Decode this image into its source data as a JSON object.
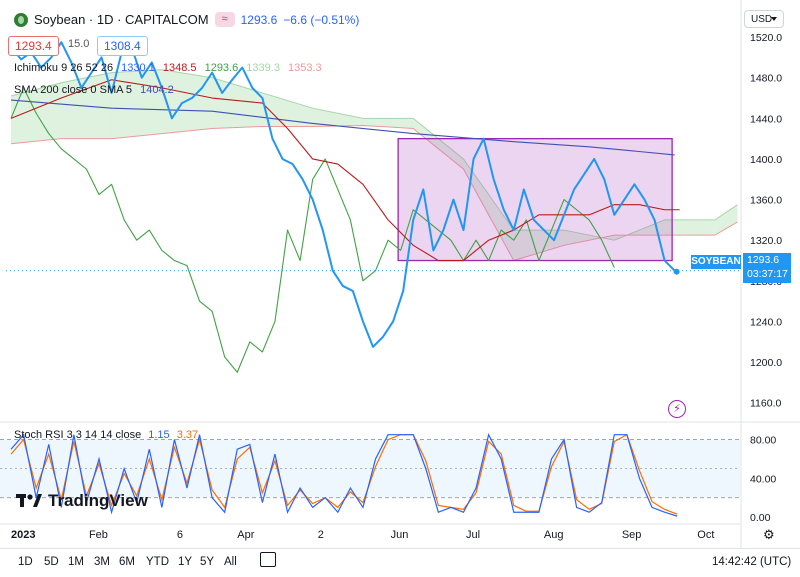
{
  "header": {
    "symbol_title": "Soybean · 1D · CAPITALCOM",
    "alert_icon": "wave-icon",
    "last_price": "1293.6",
    "change": "−6.6 (−0.51%)",
    "sell_price": "1293.4",
    "spread": "15.0",
    "buy_price": "1308.4"
  },
  "currency": "USD",
  "legends": {
    "ichimoku_name": "Ichimoku 9 26 52 26",
    "ichimoku_values": [
      "1330.1",
      "1348.5",
      "1293.6",
      "1339.3",
      "1353.3"
    ],
    "ichimoku_colors": [
      "#2962ff",
      "#b71c1c",
      "#43a047",
      "#a5d6a7",
      "#ef9a9a"
    ],
    "sma_name": "SMA 200 close 0 SMA 5",
    "sma_value": "1404.2",
    "stoch_name": "Stoch RSI 3 3 14 14 close",
    "stoch_k": "1.15",
    "stoch_d": "3.37"
  },
  "tags": {
    "symbol": "SOYBEAN",
    "price": "1293.6",
    "countdown": "03:37:17"
  },
  "watermark": "TradingView",
  "timeframes": [
    "1D",
    "5D",
    "1M",
    "3M",
    "6M",
    "YTD",
    "1Y",
    "5Y",
    "All"
  ],
  "clock": "14:42:42 (UTC)",
  "colors": {
    "price_line": "#2196f3",
    "kijun": "#b71c1c",
    "chikou": "#43a047",
    "tenkan": "#2962ff",
    "sma": "#3f51b5",
    "rect_fill": "#e1bee7",
    "rect_border": "#9c27b0",
    "stoch_k": "#2962ff",
    "stoch_d": "#ff6d00"
  },
  "chart_data": [
    {
      "type": "line",
      "title": "Soybean · 1D · CAPITALCOM",
      "y_ticks": [
        1520,
        1480,
        1440,
        1400,
        1360,
        1320,
        1280,
        1240,
        1200,
        1160
      ],
      "ylim": [
        1143,
        1525
      ],
      "x_ticks": [
        {
          "label": "2023",
          "day": 0
        },
        {
          "label": "Feb",
          "day": 31
        },
        {
          "label": "6",
          "day": 66
        },
        {
          "label": "Apr",
          "day": 90
        },
        {
          "label": "2",
          "day": 122
        },
        {
          "label": "Jun",
          "day": 151
        },
        {
          "label": "Jul",
          "day": 181
        },
        {
          "label": "Aug",
          "day": 212
        },
        {
          "label": "Sep",
          "day": 243
        },
        {
          "label": "Oct",
          "day": 273
        }
      ],
      "xlim": [
        -2,
        290
      ],
      "series": [
        {
          "name": "price",
          "color": "#2196f3",
          "x": [
            0,
            4,
            8,
            12,
            16,
            20,
            24,
            28,
            32,
            36,
            40,
            44,
            48,
            52,
            56,
            60,
            64,
            68,
            72,
            76,
            80,
            84,
            88,
            92,
            96,
            100,
            104,
            108,
            112,
            116,
            120,
            124,
            128,
            132,
            136,
            140,
            144,
            148,
            152,
            156,
            160,
            164,
            168,
            172,
            176,
            180,
            184,
            188,
            192,
            196,
            200,
            204,
            208,
            212,
            216,
            220,
            224,
            228,
            232,
            236,
            240,
            244,
            248,
            252,
            256,
            260,
            264
          ],
          "y": [
            1510,
            1498,
            1505,
            1490,
            1500,
            1515,
            1495,
            1470,
            1485,
            1500,
            1465,
            1505,
            1510,
            1480,
            1495,
            1470,
            1440,
            1455,
            1460,
            1470,
            1485,
            1465,
            1478,
            1490,
            1470,
            1460,
            1420,
            1400,
            1395,
            1380,
            1360,
            1330,
            1290,
            1275,
            1270,
            1240,
            1215,
            1225,
            1240,
            1270,
            1340,
            1370,
            1310,
            1330,
            1360,
            1330,
            1400,
            1420,
            1380,
            1350,
            1330,
            1370,
            1340,
            1330,
            1320,
            1345,
            1370,
            1385,
            1400,
            1380,
            1345,
            1360,
            1375,
            1360,
            1340,
            1300,
            1290
          ]
        },
        {
          "name": "Ichimoku Kijun",
          "color": "#b71c1c",
          "x": [
            0,
            20,
            40,
            60,
            80,
            100,
            110,
            120,
            130,
            140,
            150,
            160,
            170,
            180,
            190,
            200,
            210,
            220,
            230,
            240,
            250,
            260,
            266
          ],
          "y": [
            1440,
            1460,
            1478,
            1470,
            1460,
            1455,
            1430,
            1400,
            1395,
            1375,
            1340,
            1315,
            1300,
            1300,
            1320,
            1330,
            1345,
            1345,
            1345,
            1355,
            1355,
            1350,
            1350
          ]
        },
        {
          "name": "SMA",
          "color": "#3f51b5",
          "x": [
            0,
            40,
            80,
            120,
            160,
            200,
            230,
            264
          ],
          "y": [
            1458,
            1450,
            1447,
            1435,
            1425,
            1417,
            1412,
            1404
          ]
        },
        {
          "name": "Ichimoku Chikou",
          "color": "#43a047",
          "x": [
            0,
            5,
            10,
            15,
            20,
            25,
            30,
            35,
            40,
            45,
            50,
            55,
            60,
            65,
            70,
            75,
            80,
            85,
            90,
            95,
            100,
            105,
            110,
            115,
            120,
            125,
            130,
            135,
            140,
            145,
            150,
            155,
            160,
            165,
            170,
            175,
            180,
            185,
            190,
            195,
            200,
            205,
            210,
            215,
            220,
            225,
            230,
            235,
            240
          ],
          "y": [
            1440,
            1470,
            1445,
            1425,
            1410,
            1400,
            1390,
            1365,
            1375,
            1340,
            1320,
            1330,
            1310,
            1300,
            1295,
            1260,
            1250,
            1205,
            1190,
            1220,
            1210,
            1240,
            1330,
            1300,
            1380,
            1400,
            1370,
            1340,
            1280,
            1290,
            1320,
            1310,
            1350,
            1340,
            1330,
            1320,
            1300,
            1320,
            1300,
            1330,
            1320,
            1340,
            1300,
            1330,
            1360,
            1350,
            1340,
            1320,
            1293
          ]
        }
      ],
      "ichimoku_cloud": {
        "x": [
          0,
          20,
          40,
          60,
          80,
          100,
          120,
          140,
          160,
          180,
          200,
          220,
          240,
          260,
          280,
          289
        ],
        "span_a": [
          1462,
          1475,
          1485,
          1488,
          1480,
          1465,
          1450,
          1440,
          1440,
          1400,
          1330,
          1330,
          1320,
          1340,
          1340,
          1355
        ],
        "span_b": [
          1415,
          1420,
          1420,
          1425,
          1430,
          1432,
          1432,
          1433,
          1430,
          1390,
          1300,
          1315,
          1325,
          1325,
          1325,
          1338
        ]
      },
      "annotation_range": {
        "x": [
          154,
          263
        ],
        "y": [
          1300,
          1420
        ]
      }
    },
    {
      "type": "line",
      "title": "Stoch RSI 3 3 14 14 close",
      "y_ticks": [
        80,
        40,
        0
      ],
      "tick_labels": [
        "80.00",
        "40.00",
        "0.00"
      ],
      "ylim": [
        -3,
        95
      ],
      "band": [
        20,
        80
      ],
      "series": [
        {
          "name": "K",
          "color": "#2962ff",
          "x": [
            0,
            5,
            10,
            15,
            20,
            25,
            30,
            35,
            40,
            45,
            50,
            55,
            60,
            65,
            70,
            75,
            80,
            85,
            90,
            95,
            100,
            105,
            110,
            115,
            120,
            125,
            130,
            135,
            140,
            145,
            150,
            155,
            160,
            165,
            170,
            175,
            180,
            185,
            190,
            195,
            200,
            205,
            210,
            215,
            220,
            225,
            230,
            235,
            240,
            245,
            250,
            255,
            260,
            265
          ],
          "y": [
            70,
            85,
            20,
            75,
            10,
            85,
            15,
            60,
            5,
            50,
            15,
            70,
            10,
            80,
            30,
            85,
            20,
            5,
            70,
            75,
            15,
            65,
            5,
            30,
            10,
            20,
            5,
            30,
            10,
            60,
            85,
            85,
            85,
            50,
            5,
            10,
            5,
            30,
            85,
            60,
            5,
            5,
            5,
            60,
            80,
            10,
            5,
            15,
            85,
            85,
            40,
            10,
            5,
            1
          ]
        },
        {
          "name": "D",
          "color": "#ff6d00",
          "x": [
            0,
            5,
            10,
            15,
            20,
            25,
            30,
            35,
            40,
            45,
            50,
            55,
            60,
            65,
            70,
            75,
            80,
            85,
            90,
            95,
            100,
            105,
            110,
            115,
            120,
            125,
            130,
            135,
            140,
            145,
            150,
            155,
            160,
            165,
            170,
            175,
            180,
            185,
            190,
            195,
            200,
            205,
            210,
            215,
            220,
            225,
            230,
            235,
            240,
            245,
            250,
            255,
            260,
            265
          ],
          "y": [
            65,
            80,
            30,
            65,
            18,
            78,
            22,
            55,
            12,
            45,
            22,
            60,
            18,
            72,
            35,
            80,
            28,
            10,
            60,
            72,
            25,
            58,
            12,
            28,
            14,
            20,
            10,
            26,
            15,
            52,
            80,
            85,
            85,
            58,
            12,
            10,
            8,
            25,
            78,
            65,
            12,
            6,
            6,
            52,
            78,
            18,
            8,
            14,
            78,
            85,
            48,
            16,
            8,
            3
          ]
        }
      ]
    }
  ]
}
